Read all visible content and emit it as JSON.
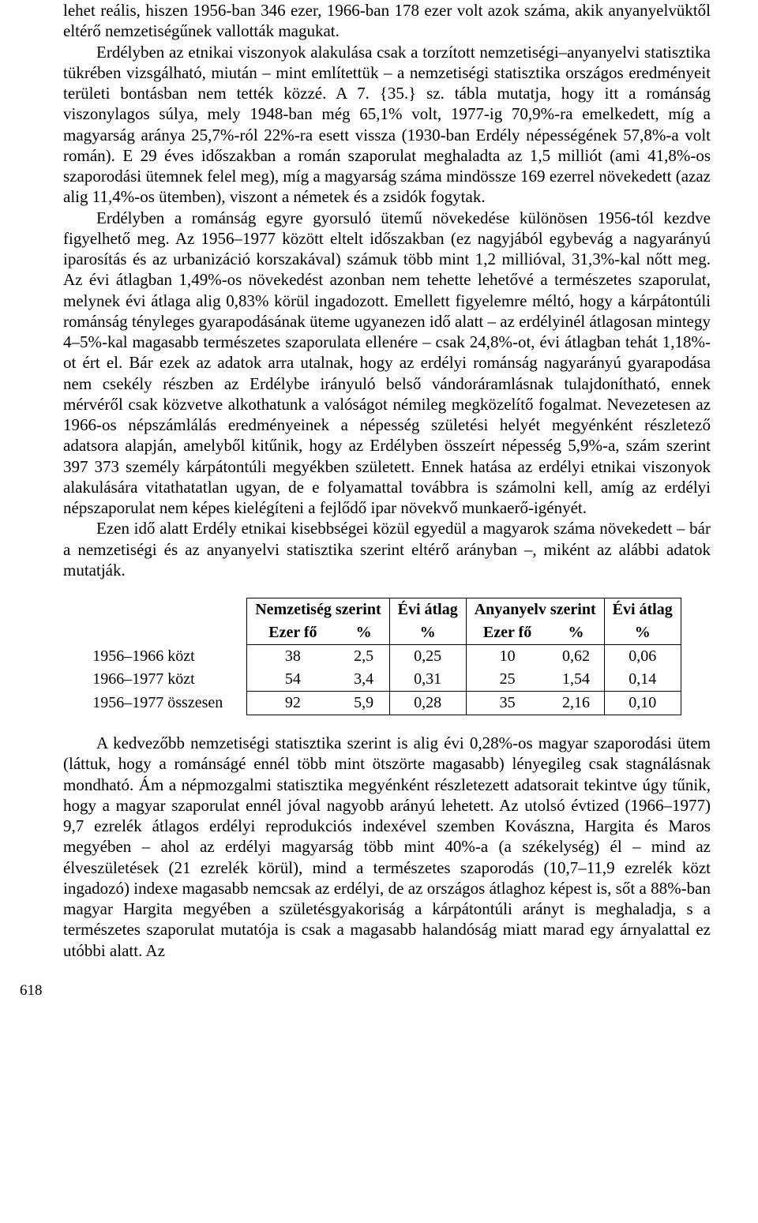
{
  "paragraphs": {
    "p1": "lehet reális, hiszen 1956-ban 346 ezer, 1966-ban 178 ezer volt azok száma, akik anyanyelvüktől eltérő nemzetiségűnek vallották magukat.",
    "p2": "Erdélyben az etnikai viszonyok alakulása csak a torzított nemzetiségi–anyanyelvi statisztika tükrében vizsgálható, miután – mint említettük – a nemzetiségi statisztika országos eredményeit területi bontásban nem tették közzé. A 7. {35.} sz. tábla mutatja, hogy itt a románság viszonylagos súlya, mely 1948-ban még 65,1% volt, 1977-ig 70,9%-ra emelkedett, míg a magyarság aránya 25,7%-ról 22%-ra esett vissza (1930-ban Erdély népességének 57,8%-a volt román). E 29 éves időszakban a román szaporulat meghaladta az 1,5 milliót (ami 41,8%-os szaporodási ütemnek felel meg), míg a magyarság száma mindössze 169 ezerrel növekedett (azaz alig 11,4%-os ütemben), viszont a németek és a zsidók fogytak.",
    "p3": "Erdélyben a románság egyre gyorsuló ütemű növekedése különösen 1956-tól kezdve figyelhető meg. Az 1956–1977 között eltelt időszakban (ez nagyjából egybevág a nagyarányú iparosítás és az urbanizáció korszakával) számuk több mint 1,2 millióval, 31,3%-kal nőtt meg. Az évi átlagban 1,49%-os növekedést azonban nem tehette lehetővé a természetes szaporulat, melynek évi átlaga alig 0,83% körül ingadozott. Emellett figyelemre méltó, hogy a kárpátontúli románság tényleges gyarapodásának üteme ugyanezen idő alatt – az erdélyinél átlagosan mintegy 4–5%-kal magasabb természetes szaporulata ellenére – csak 24,8%-ot, évi átlagban tehát 1,18%-ot ért el. Bár ezek az adatok arra utalnak, hogy az erdélyi románság nagyarányú gyarapodása nem csekély részben az Erdélybe irányuló belső vándoráramlásnak tulajdonítható, ennek mérvéről csak közvetve alkothatunk a valóságot némileg megközelítő fogalmat. Nevezetesen az 1966-os népszámlálás eredményeinek a népesség születési helyét megyénként részletező adatsora alapján, amelyből kitűnik, hogy az Erdélyben összeírt népesség 5,9%-a, szám szerint 397 373 személy kárpátontúli megyékben született. Ennek hatása az erdélyi etnikai viszonyok alakulására vitathatatlan ugyan, de e folyamattal továbbra is számolni kell, amíg az erdélyi népszaporulat nem képes kielégíteni a fejlődő ipar növekvő munkaerő-igényét.",
    "p4": "Ezen idő alatt Erdély etnikai kisebbségei közül egyedül a magyarok száma növekedett – bár a nemzetiségi és az anyanyelvi statisztika szerint eltérő arányban –, miként az alábbi adatok mutatják.",
    "p5": "A kedvezőbb nemzetiségi statisztika szerint is alig évi 0,28%-os magyar szaporodási ütem (láttuk, hogy a románságé ennél több mint ötszörte magasabb) lényegileg csak stagnálásnak mondható. Ám a népmozgalmi statisztika megyénként részletezett adatsorait tekintve úgy tűnik, hogy a magyar szaporulat ennél jóval nagyobb arányú lehetett. Az utolsó évtized (1966–1977) 9,7 ezrelék átlagos erdélyi reprodukciós indexével szemben Kovászna, Hargita és Maros megyében – ahol az erdélyi magyarság több mint 40%-a (a székelység) él – mind az élveszületések (21 ezrelék körül), mind a természetes szaporodás (10,7–11,9 ezrelék közt ingadozó) indexe magasabb nemcsak az erdélyi, de az országos átlaghoz képest is, sőt a 88%-ban magyar Hargita megyében a születésgyakoriság a kárpátontúli arányt is meghaladja, s a természetes szaporulat mutatója is csak a magasabb halandóság miatt marad egy árnyalattal ez utóbbi alatt. Az"
  },
  "table": {
    "header_group1": "Nemzetiség szerint",
    "header_group2": "Évi átlag",
    "header_group3": "Anyanyelv szerint",
    "header_group4": "Évi átlag",
    "sub_ezer": "Ezer fő",
    "sub_pct": "%",
    "rows": [
      {
        "label": "1956–1966 közt",
        "c1": "38",
        "c2": "2,5",
        "c3": "0,25",
        "c4": "10",
        "c5": "0,62",
        "c6": "0,06"
      },
      {
        "label": "1966–1977 közt",
        "c1": "54",
        "c2": "3,4",
        "c3": "0,31",
        "c4": "25",
        "c5": "1,54",
        "c6": "0,14"
      },
      {
        "label": "1956–1977 összesen",
        "c1": "92",
        "c2": "5,9",
        "c3": "0,28",
        "c4": "35",
        "c5": "2,16",
        "c6": "0,10"
      }
    ]
  },
  "pagenum": "618"
}
